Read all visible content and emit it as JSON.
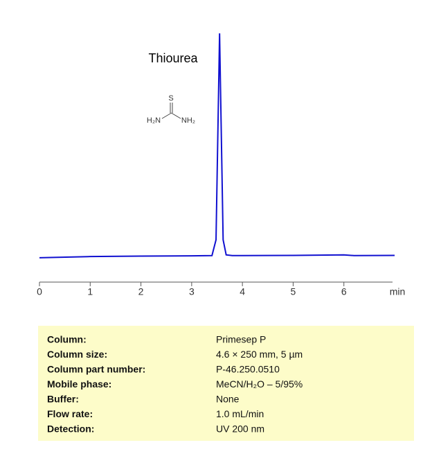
{
  "chart_data": {
    "type": "line",
    "title": "Thiourea",
    "structure_labels": [
      "S",
      "H₂N",
      "NH₂"
    ],
    "xlabel": "min",
    "x": [
      0,
      1,
      2,
      3,
      3.4,
      3.48,
      3.52,
      3.55,
      3.58,
      3.62,
      3.68,
      3.8,
      4,
      5,
      6,
      6.2,
      7
    ],
    "series": [
      {
        "color": "#1010d0",
        "values": [
          2.4,
          2.9,
          3.1,
          3.2,
          3.3,
          10,
          60,
          97.6,
          60,
          10,
          3.6,
          3.3,
          3.3,
          3.4,
          3.6,
          3.3,
          3.4
        ]
      }
    ],
    "xlim": [
      0,
      7
    ],
    "xticks": [
      0,
      1,
      2,
      3,
      4,
      5,
      6
    ],
    "ylim": [
      0,
      100
    ]
  },
  "table": {
    "rows": [
      [
        "Column:",
        "Primesep  P"
      ],
      [
        "Column size:",
        "4.6 × 250 mm, 5 µm"
      ],
      [
        "Column part number:",
        "P-46.250.0510"
      ],
      [
        "Mobile phase:",
        "MeCN/H₂O – 5/95%"
      ],
      [
        "Buffer:",
        "None"
      ],
      [
        "Flow rate:",
        "1.0 mL/min"
      ],
      [
        "Detection:",
        "UV 200  nm"
      ]
    ]
  }
}
